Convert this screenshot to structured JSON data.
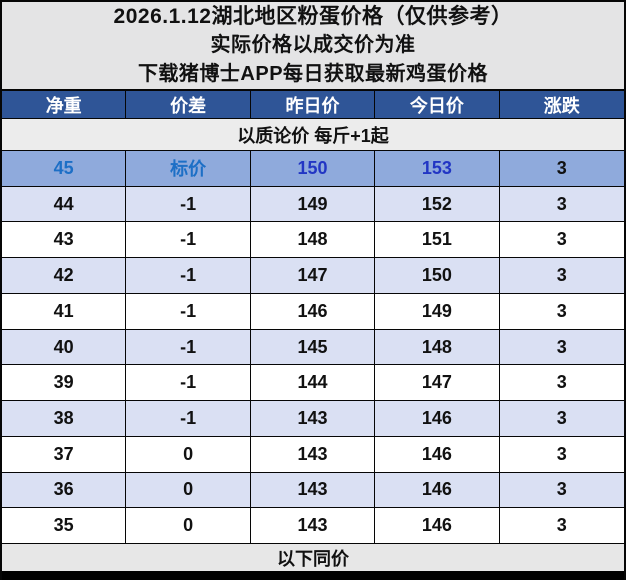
{
  "title": {
    "line1": "2026.1.12湖北地区粉蛋价格（仅供参考）",
    "line2": "实际价格以成交价为准",
    "line3": "下载猪博士APP每日获取最新鸡蛋价格"
  },
  "table": {
    "headers": [
      "净重",
      "价差",
      "昨日价",
      "今日价",
      "涨跌"
    ],
    "notice": "以质论价 每斤+1起",
    "rows": [
      {
        "weight": "45",
        "diff": "标价",
        "yesterday": "150",
        "today": "153",
        "change": "3",
        "highlight": true
      },
      {
        "weight": "44",
        "diff": "-1",
        "yesterday": "149",
        "today": "152",
        "change": "3"
      },
      {
        "weight": "43",
        "diff": "-1",
        "yesterday": "148",
        "today": "151",
        "change": "3"
      },
      {
        "weight": "42",
        "diff": "-1",
        "yesterday": "147",
        "today": "150",
        "change": "3"
      },
      {
        "weight": "41",
        "diff": "-1",
        "yesterday": "146",
        "today": "149",
        "change": "3"
      },
      {
        "weight": "40",
        "diff": "-1",
        "yesterday": "145",
        "today": "148",
        "change": "3"
      },
      {
        "weight": "39",
        "diff": "-1",
        "yesterday": "144",
        "today": "147",
        "change": "3"
      },
      {
        "weight": "38",
        "diff": "-1",
        "yesterday": "143",
        "today": "146",
        "change": "3"
      },
      {
        "weight": "37",
        "diff": "0",
        "yesterday": "143",
        "today": "146",
        "change": "3"
      },
      {
        "weight": "36",
        "diff": "0",
        "yesterday": "143",
        "today": "146",
        "change": "3"
      },
      {
        "weight": "35",
        "diff": "0",
        "yesterday": "143",
        "today": "146",
        "change": "3"
      }
    ],
    "footer": "以下同价"
  },
  "colors": {
    "title_bg": "#E4E4E5",
    "header_bg": "#2F5597",
    "notice_bg": "#ECECEC",
    "highlight_row_bg": "#8FAADC",
    "alt_row_bg": "#DAE0F3",
    "footer_bg": "#E7E7E7",
    "highlight_label_text": "#1D6FC6",
    "highlight_price_text": "#2236C4"
  }
}
